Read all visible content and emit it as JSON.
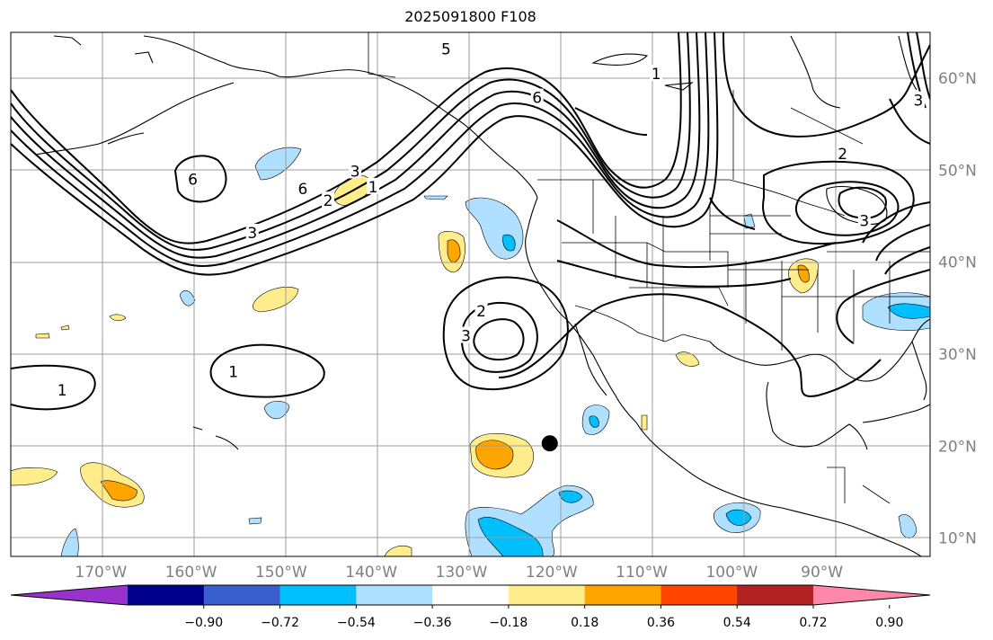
{
  "title": "2025091800 F108",
  "map": {
    "projection": "PlateCarree",
    "extent": {
      "lon_min": -180,
      "lon_max": -78,
      "lat_min": 8,
      "lat_max": 65
    },
    "gridlines": true,
    "marker": {
      "lon": -120.2,
      "lat": 20.3,
      "color": "#000000"
    }
  },
  "lon_labels": [
    {
      "lon": -170,
      "text": "170°W"
    },
    {
      "lon": -160,
      "text": "160°W"
    },
    {
      "lon": -150,
      "text": "150°W"
    },
    {
      "lon": -140,
      "text": "140°W"
    },
    {
      "lon": -130,
      "text": "130°W"
    },
    {
      "lon": -120,
      "text": "120°W"
    },
    {
      "lon": -110,
      "text": "110°W"
    },
    {
      "lon": -100,
      "text": "100°W"
    },
    {
      "lon": -90,
      "text": "90°W"
    }
  ],
  "lat_labels": [
    {
      "lat": 60,
      "text": "60°N"
    },
    {
      "lat": 50,
      "text": "50°N"
    },
    {
      "lat": 40,
      "text": "40°N"
    },
    {
      "lat": 30,
      "text": "30°N"
    },
    {
      "lat": 20,
      "text": "20°N"
    },
    {
      "lat": 10,
      "text": "10°N"
    }
  ],
  "colorbar": {
    "colors": [
      "#9932cc",
      "#00008b",
      "#3a5fcd",
      "#00bfff",
      "#b0e0ff",
      "#ffffff",
      "#ffec8b",
      "#ffa500",
      "#ff4500",
      "#b22222",
      "#ff88aa"
    ],
    "tick_labels": [
      "−0.90",
      "−0.72",
      "−0.54",
      "−0.36",
      "−0.18",
      "0.18",
      "0.36",
      "0.54",
      "0.72",
      "0.90"
    ]
  },
  "contour_labels": [
    {
      "text": "5",
      "lon": -131.7,
      "lat": 63.2
    },
    {
      "text": "6",
      "lon": -121.6,
      "lat": 57.9
    },
    {
      "text": "1",
      "lon": -108.4,
      "lat": 60.5
    },
    {
      "text": "3",
      "lon": -79.3,
      "lat": 57.6
    },
    {
      "text": "6",
      "lon": -147.6,
      "lat": 48.0
    },
    {
      "text": "6",
      "lon": -159.8,
      "lat": 49.0
    },
    {
      "text": "3",
      "lon": -141.8,
      "lat": 49.9
    },
    {
      "text": "1",
      "lon": -139.8,
      "lat": 48.2
    },
    {
      "text": "2",
      "lon": -144.8,
      "lat": 46.7
    },
    {
      "text": "3",
      "lon": -153.2,
      "lat": 43.2
    },
    {
      "text": "2",
      "lon": -87.7,
      "lat": 51.8
    },
    {
      "text": "3",
      "lon": -85.3,
      "lat": 44.5
    },
    {
      "text": "2",
      "lon": -127.8,
      "lat": 34.7
    },
    {
      "text": "3",
      "lon": -129.5,
      "lat": 32.0
    },
    {
      "text": "1",
      "lon": -174.3,
      "lat": 26.1
    },
    {
      "text": "1",
      "lon": -155.3,
      "lat": 28.1
    }
  ]
}
